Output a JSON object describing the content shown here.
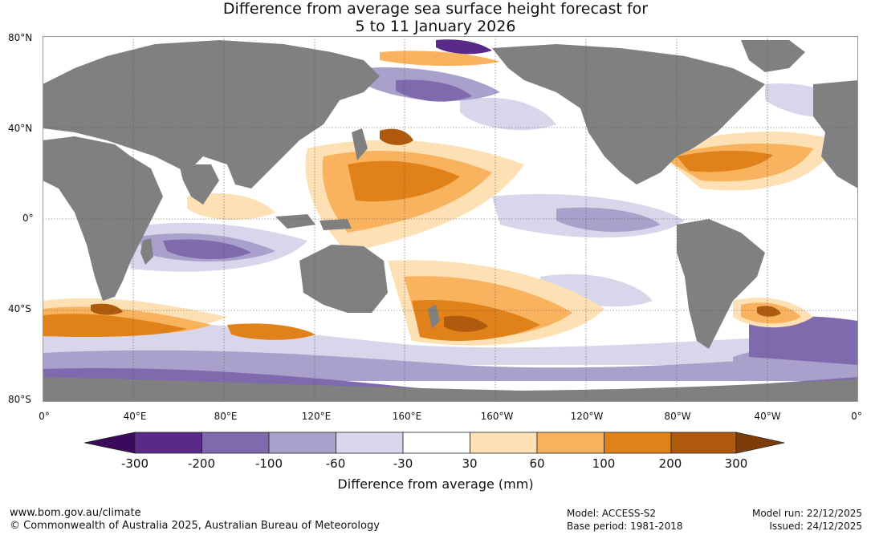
{
  "title": {
    "line1": "Difference from average sea surface height forecast for",
    "line2": "5 to 11 January 2026"
  },
  "lat_labels": [
    "80°N",
    "40°N",
    "0°",
    "40°S",
    "80°S"
  ],
  "lon_labels": [
    "0°",
    "40°E",
    "80°E",
    "120°E",
    "160°E",
    "160°W",
    "120°W",
    "80°W",
    "40°W",
    "0°"
  ],
  "colorbar": {
    "title": "Difference from average (mm)",
    "ticks": [
      "-300",
      "-200",
      "-100",
      "-60",
      "-30",
      "30",
      "60",
      "100",
      "200",
      "300"
    ],
    "colors": [
      "#3b0a5c",
      "#5a2a8a",
      "#7f6aad",
      "#aaa0cc",
      "#d8d6ea",
      "#ffffff",
      "#fde0b4",
      "#f9b35e",
      "#e0811a",
      "#b05a0e",
      "#7e3d08"
    ]
  },
  "footer": {
    "url": "www.bom.gov.au/climate",
    "copyright": "© Commonwealth of Australia 2025, Australian Bureau of Meteorology",
    "model": "Model: ACCESS-S2",
    "base_period": "Base period: 1981-2018",
    "model_run": "Model run: 22/12/2025",
    "issued": "Issued: 24/12/2025"
  },
  "map_colors": {
    "land": "#808080",
    "ocean": "#ffffff",
    "grid": "#555555"
  }
}
